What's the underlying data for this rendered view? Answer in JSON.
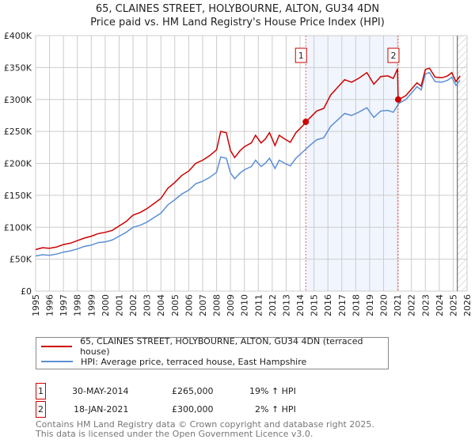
{
  "title": "65, CLAINES STREET, HOLYBOURNE, ALTON, GU34 4DN",
  "subtitle": "Price paid vs. HM Land Registry's House Price Index (HPI)",
  "chart_data": {
    "type": "line",
    "xlim": [
      1995,
      2026
    ],
    "ylim": [
      0,
      400000
    ],
    "x_ticks": [
      "1995",
      "1996",
      "1997",
      "1998",
      "1999",
      "2000",
      "2001",
      "2002",
      "2003",
      "2004",
      "2005",
      "2006",
      "2007",
      "2008",
      "2009",
      "2010",
      "2011",
      "2012",
      "2013",
      "2014",
      "2015",
      "2016",
      "2017",
      "2018",
      "2019",
      "2020",
      "2021",
      "2022",
      "2023",
      "2024",
      "2025",
      "2026"
    ],
    "y_ticks": [
      {
        "v": 0,
        "l": "£0"
      },
      {
        "v": 50000,
        "l": "£50K"
      },
      {
        "v": 100000,
        "l": "£100K"
      },
      {
        "v": 150000,
        "l": "£150K"
      },
      {
        "v": 200000,
        "l": "£200K"
      },
      {
        "v": 250000,
        "l": "£250K"
      },
      {
        "v": 300000,
        "l": "£300K"
      },
      {
        "v": 350000,
        "l": "£350K"
      },
      {
        "v": 400000,
        "l": "£400K"
      }
    ],
    "shaded_range": [
      2014.41,
      2021.05
    ],
    "hatched_from": 2025.3,
    "series": [
      {
        "name": "65, CLAINES STREET, HOLYBOURNE, ALTON, GU34 4DN (terraced house)",
        "color": "#cc0000",
        "x": [
          1995,
          1995.5,
          1996,
          1996.5,
          1997,
          1997.5,
          1998,
          1998.5,
          1999,
          1999.5,
          2000,
          2000.5,
          2001,
          2001.5,
          2002,
          2002.5,
          2003,
          2003.5,
          2004,
          2004.5,
          2005,
          2005.5,
          2006,
          2006.5,
          2007,
          2007.5,
          2008,
          2008.3,
          2008.7,
          2009,
          2009.3,
          2009.7,
          2010,
          2010.5,
          2010.8,
          2011.2,
          2011.5,
          2011.8,
          2012.2,
          2012.5,
          2012.9,
          2013.3,
          2013.7,
          2014.2,
          2014.41,
          2014.7,
          2015.2,
          2015.7,
          2016.2,
          2016.7,
          2017.2,
          2017.7,
          2018.2,
          2018.8,
          2019.3,
          2019.8,
          2020.3,
          2020.7,
          2021.0,
          2021.05,
          2021.1,
          2021.6,
          2022.0,
          2022.4,
          2022.7,
          2023.0,
          2023.3,
          2023.7,
          2024.2,
          2024.6,
          2024.9,
          2025.2,
          2025.5
        ],
        "y": [
          65,
          68,
          67,
          69,
          73,
          75,
          79,
          83,
          86,
          90,
          92,
          95,
          102,
          109,
          119,
          123,
          129,
          137,
          145,
          161,
          170,
          181,
          188,
          200,
          205,
          212,
          221,
          250,
          248,
          220,
          209,
          220,
          226,
          232,
          244,
          232,
          238,
          248,
          228,
          244,
          238,
          233,
          248,
          259,
          265,
          271,
          282,
          286,
          307,
          319,
          331,
          327,
          333,
          342,
          324,
          336,
          337,
          333,
          348,
          300,
          300,
          306,
          316,
          326,
          321,
          347,
          349,
          335,
          334,
          337,
          342,
          328,
          337
        ]
      },
      {
        "name": "HPI: Average price, terraced house, East Hampshire",
        "color": "#5b8fd4",
        "x": [
          1995,
          1995.5,
          1996,
          1996.5,
          1997,
          1997.5,
          1998,
          1998.5,
          1999,
          1999.5,
          2000,
          2000.5,
          2001,
          2001.5,
          2002,
          2002.5,
          2003,
          2003.5,
          2004,
          2004.5,
          2005,
          2005.5,
          2006,
          2006.5,
          2007,
          2007.5,
          2008,
          2008.3,
          2008.7,
          2009,
          2009.3,
          2009.7,
          2010,
          2010.5,
          2010.8,
          2011.2,
          2011.5,
          2011.8,
          2012.2,
          2012.5,
          2012.9,
          2013.3,
          2013.7,
          2014.2,
          2014.7,
          2015.2,
          2015.7,
          2016.2,
          2016.7,
          2017.2,
          2017.7,
          2018.2,
          2018.8,
          2019.3,
          2019.8,
          2020.3,
          2020.7,
          2021.1,
          2021.6,
          2022.0,
          2022.4,
          2022.7,
          2023.0,
          2023.3,
          2023.7,
          2024.2,
          2024.6,
          2024.9,
          2025.2,
          2025.5
        ],
        "y": [
          55,
          57,
          56,
          58,
          61,
          63,
          66,
          70,
          72,
          76,
          77,
          80,
          86,
          92,
          100,
          103,
          108,
          115,
          122,
          135,
          143,
          152,
          158,
          168,
          172,
          178,
          186,
          210,
          208,
          185,
          176,
          185,
          190,
          195,
          205,
          195,
          200,
          208,
          192,
          205,
          200,
          196,
          208,
          218,
          228,
          237,
          240,
          258,
          268,
          278,
          275,
          280,
          287,
          272,
          282,
          283,
          280,
          294,
          300,
          310,
          320,
          315,
          340,
          342,
          328,
          327,
          330,
          335,
          322,
          330
        ]
      }
    ],
    "y_unit": "thousands GBP",
    "sales": [
      {
        "label": "1",
        "x": 2014.41,
        "y": 265
      },
      {
        "label": "2",
        "x": 2021.05,
        "y": 300
      }
    ]
  },
  "legend": {
    "property": "65, CLAINES STREET, HOLYBOURNE, ALTON, GU34 4DN (terraced house)",
    "hpi": "HPI: Average price, terraced house, East Hampshire"
  },
  "transactions": [
    {
      "num": "1",
      "date": "30-MAY-2014",
      "price": "£265,000",
      "hpi": "19% ↑ HPI"
    },
    {
      "num": "2",
      "date": "18-JAN-2021",
      "price": "£300,000",
      "hpi": "2% ↑ HPI"
    }
  ],
  "footer": [
    "Contains HM Land Registry data © Crown copyright and database right 2025.",
    "This data is licensed under the Open Government Licence v3.0."
  ]
}
